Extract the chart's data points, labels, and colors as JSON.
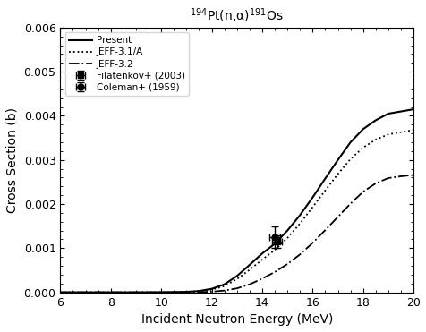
{
  "title": "$^{194}$Pt(n,α)$^{191}$Os",
  "xlabel": "Incident Neutron Energy (MeV)",
  "ylabel": "Cross Section (b)",
  "xlim": [
    6,
    20
  ],
  "ylim": [
    0,
    0.006
  ],
  "yticks": [
    0.0,
    0.001,
    0.002,
    0.003,
    0.004,
    0.005,
    0.006
  ],
  "xticks": [
    6,
    8,
    10,
    12,
    14,
    16,
    18,
    20
  ],
  "present_x": [
    6,
    7,
    8,
    9,
    10,
    10.5,
    11,
    11.5,
    12,
    12.5,
    13,
    13.5,
    14,
    14.5,
    15,
    15.5,
    16,
    16.5,
    17,
    17.5,
    18,
    18.5,
    19,
    19.5,
    20
  ],
  "present_y": [
    0,
    0,
    0,
    0,
    2e-06,
    5e-06,
    1.2e-05,
    3e-05,
    8e-05,
    0.00018,
    0.00037,
    0.00062,
    0.00088,
    0.0011,
    0.0014,
    0.00175,
    0.00215,
    0.00258,
    0.003,
    0.0034,
    0.0037,
    0.0039,
    0.00405,
    0.0041,
    0.00415
  ],
  "jeff31_x": [
    6,
    7,
    8,
    9,
    10,
    10.5,
    11,
    11.5,
    12,
    12.5,
    13,
    13.5,
    14,
    14.5,
    15,
    15.5,
    16,
    16.5,
    17,
    17.5,
    18,
    18.5,
    19,
    19.5,
    20
  ],
  "jeff31_y": [
    0,
    0,
    0,
    0,
    1e-06,
    3e-06,
    9e-06,
    2.2e-05,
    6e-05,
    0.00014,
    0.0003,
    0.00051,
    0.00074,
    0.00096,
    0.00123,
    0.00156,
    0.00193,
    0.00231,
    0.00268,
    0.00302,
    0.00328,
    0.00346,
    0.00358,
    0.00363,
    0.00368
  ],
  "jeff32_x": [
    6,
    7,
    8,
    9,
    10,
    10.5,
    11,
    11.5,
    12,
    12.5,
    13,
    13.5,
    14,
    14.5,
    15,
    15.5,
    16,
    16.5,
    17,
    17.5,
    18,
    18.5,
    19,
    19.5,
    20
  ],
  "jeff32_y": [
    0,
    0,
    0,
    0,
    0,
    1e-06,
    2e-06,
    5e-06,
    1.5e-05,
    4e-05,
    9e-05,
    0.00018,
    0.00031,
    0.00046,
    0.00064,
    0.00086,
    0.00112,
    0.00141,
    0.00171,
    0.00201,
    0.00228,
    0.00247,
    0.00259,
    0.00263,
    0.00266
  ],
  "filatenkov_x": [
    14.6
  ],
  "filatenkov_y": [
    0.00115
  ],
  "filatenkov_xerr": [
    0.2
  ],
  "filatenkov_yerr": [
    0.00015
  ],
  "coleman_x": [
    14.5
  ],
  "coleman_y": [
    0.00125
  ],
  "coleman_xerr": [
    0.2
  ],
  "coleman_yerr": [
    0.00025
  ],
  "legend_labels": [
    "Present",
    "JEFF-3.1/A",
    "JEFF-3.2",
    "Filatenkov+ (2003)",
    "Coleman+ (1959)"
  ],
  "line_color": "#000000",
  "background_color": "#ffffff"
}
